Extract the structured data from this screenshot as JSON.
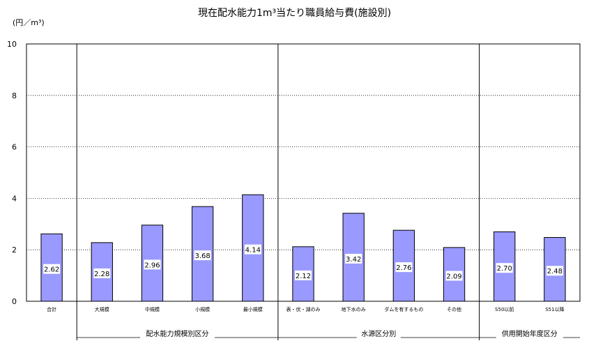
{
  "title": "現在配水能力1m³当たり職員給与費(施設別)",
  "unit_label": "(円／m³)",
  "chart_data": {
    "type": "bar",
    "title": "現在配水能力1m³当たり職員給与費(施設別)",
    "ylabel": "(円／m³)",
    "ylim": [
      0,
      10
    ],
    "yticks": [
      0,
      2,
      4,
      6,
      8,
      10
    ],
    "grid": true,
    "categories": [
      "合計",
      "大規模",
      "中規模",
      "小規模",
      "最小規模",
      "表・伏・湖のみ",
      "地下水のみ",
      "ダムを有するもの",
      "その他",
      "S50以前",
      "S51以降"
    ],
    "values": [
      2.62,
      2.28,
      2.96,
      3.68,
      4.14,
      2.12,
      3.42,
      2.76,
      2.09,
      2.7,
      2.48
    ],
    "value_labels": [
      "2.62",
      "2.28",
      "2.96",
      "3.68",
      "4.14",
      "2.12",
      "3.42",
      "2.76",
      "2.09",
      "2.70",
      "2.48"
    ],
    "groups": [
      {
        "label": "配水能力規模別区分",
        "start": 1,
        "end": 4
      },
      {
        "label": "水源区分別",
        "start": 5,
        "end": 8
      },
      {
        "label": "供用開始年度区分",
        "start": 9,
        "end": 10
      }
    ],
    "bar_color": "#9999ff"
  }
}
